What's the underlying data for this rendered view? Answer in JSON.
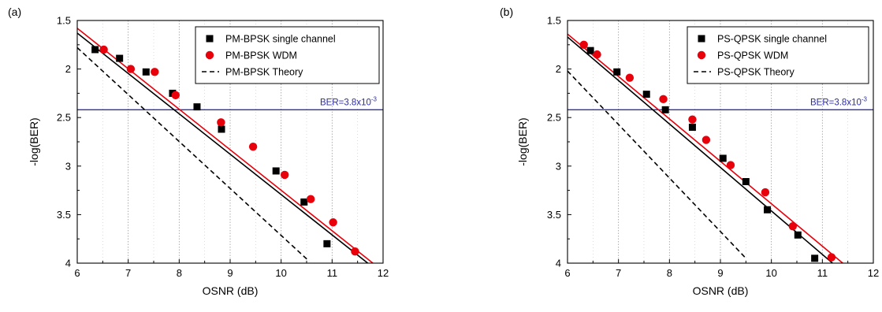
{
  "chart_data": [
    {
      "type": "scatter",
      "panel_label": "(a)",
      "xlabel": "OSNR (dB)",
      "ylabel": "-log(BER)",
      "xlim": [
        6,
        12
      ],
      "ylim": [
        1.5,
        4
      ],
      "y_inverted": true,
      "x_ticks": [
        "6",
        "7",
        "8",
        "9",
        "10",
        "11",
        "12"
      ],
      "y_ticks": [
        "1.5",
        "2",
        "2.5",
        "3",
        "3.5",
        "4"
      ],
      "grid": "vertical dotted",
      "legend_position": "top-right",
      "threshold": {
        "label": "BER=3.8x10",
        "exp": "-3",
        "y": 2.42,
        "color": "#2b2bb0"
      },
      "series": [
        {
          "name": "PM-BPSK single channel",
          "marker": "square",
          "color": "#000000",
          "x": [
            6.35,
            6.83,
            7.35,
            7.87,
            8.35,
            8.83,
            9.9,
            10.45,
            10.9
          ],
          "y": [
            1.8,
            1.89,
            2.03,
            2.25,
            2.39,
            2.62,
            3.05,
            3.37,
            3.8
          ],
          "fit": {
            "x": [
              6.0,
              11.7
            ],
            "y": [
              1.63,
              4.0
            ],
            "color": "#000000",
            "style": "solid"
          }
        },
        {
          "name": "PM-BPSK WDM",
          "marker": "circle",
          "color": "#e8000b",
          "x": [
            6.52,
            7.05,
            7.52,
            7.93,
            8.82,
            9.45,
            10.07,
            10.58,
            11.02,
            11.45
          ],
          "y": [
            1.8,
            2.0,
            2.03,
            2.27,
            2.55,
            2.8,
            3.09,
            3.34,
            3.58,
            3.88
          ],
          "fit": {
            "x": [
              6.0,
              11.8
            ],
            "y": [
              1.58,
              4.0
            ],
            "color": "#e8000b",
            "style": "solid"
          }
        },
        {
          "name": "PM-BPSK Theory",
          "marker": "none",
          "color": "#000000",
          "fit": {
            "x": [
              6.0,
              10.55
            ],
            "y": [
              1.78,
              3.98
            ],
            "color": "#000000",
            "style": "dashed"
          }
        }
      ]
    },
    {
      "type": "scatter",
      "panel_label": "(b)",
      "xlabel": "OSNR (dB)",
      "ylabel": "-log(BER)",
      "xlim": [
        6,
        12
      ],
      "ylim": [
        1.5,
        4
      ],
      "y_inverted": true,
      "x_ticks": [
        "6",
        "7",
        "8",
        "9",
        "10",
        "11",
        "12"
      ],
      "y_ticks": [
        "1.5",
        "2",
        "2.5",
        "3",
        "3.5",
        "4"
      ],
      "grid": "vertical dotted",
      "legend_position": "top-right",
      "threshold": {
        "label": "BER=3.8x10",
        "exp": "-3",
        "y": 2.42,
        "color": "#2b2bb0"
      },
      "series": [
        {
          "name": "PS-QPSK single channel",
          "marker": "square",
          "color": "#000000",
          "x": [
            6.45,
            6.97,
            7.55,
            7.92,
            8.45,
            9.05,
            9.5,
            9.92,
            10.52,
            10.85
          ],
          "y": [
            1.81,
            2.03,
            2.26,
            2.42,
            2.6,
            2.92,
            3.16,
            3.45,
            3.71,
            3.95
          ],
          "fit": {
            "x": [
              6.0,
              11.2
            ],
            "y": [
              1.67,
              4.0
            ],
            "color": "#000000",
            "style": "solid"
          }
        },
        {
          "name": "PS-QPSK WDM",
          "marker": "circle",
          "color": "#e8000b",
          "x": [
            6.32,
            6.58,
            7.22,
            7.88,
            8.45,
            8.72,
            9.2,
            9.88,
            10.42,
            11.18
          ],
          "y": [
            1.75,
            1.85,
            2.09,
            2.31,
            2.52,
            2.73,
            2.99,
            3.27,
            3.62,
            3.94
          ],
          "fit": {
            "x": [
              6.0,
              11.4
            ],
            "y": [
              1.64,
              4.0
            ],
            "color": "#e8000b",
            "style": "solid"
          }
        },
        {
          "name": "PS-QPSK Theory",
          "marker": "none",
          "color": "#000000",
          "fit": {
            "x": [
              6.0,
              9.5
            ],
            "y": [
              2.02,
              3.95
            ],
            "color": "#000000",
            "style": "dashed"
          }
        }
      ]
    }
  ]
}
